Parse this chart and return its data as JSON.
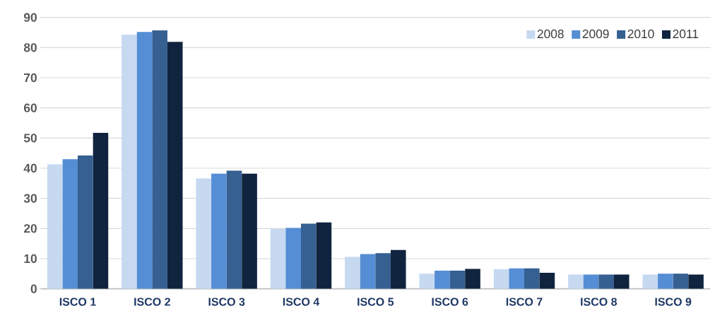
{
  "chart_data": {
    "type": "bar",
    "categories": [
      "ISCO 1",
      "ISCO 2",
      "ISCO 3",
      "ISCO 4",
      "ISCO 5",
      "ISCO 6",
      "ISCO 7",
      "ISCO 8",
      "ISCO 9"
    ],
    "series": [
      {
        "name": "2008",
        "color": "#c6d9f1",
        "values": [
          41.3,
          84.3,
          36.6,
          19.9,
          10.6,
          5.0,
          6.5,
          4.7,
          4.7
        ]
      },
      {
        "name": "2009",
        "color": "#558ed5",
        "values": [
          43.0,
          85.2,
          38.2,
          20.2,
          11.5,
          6.0,
          6.8,
          4.7,
          5.0
        ]
      },
      {
        "name": "2010",
        "color": "#366092",
        "values": [
          44.2,
          85.7,
          39.2,
          21.6,
          11.8,
          6.0,
          6.8,
          4.7,
          5.0
        ]
      },
      {
        "name": "2011",
        "color": "#10243f",
        "values": [
          51.7,
          81.9,
          38.2,
          22.0,
          12.9,
          6.6,
          5.3,
          4.7,
          4.7
        ]
      }
    ],
    "ylim": [
      0,
      90
    ],
    "yticks": [
      0,
      10,
      20,
      30,
      40,
      50,
      60,
      70,
      80,
      90
    ],
    "grid": "y",
    "legend": "top right"
  }
}
